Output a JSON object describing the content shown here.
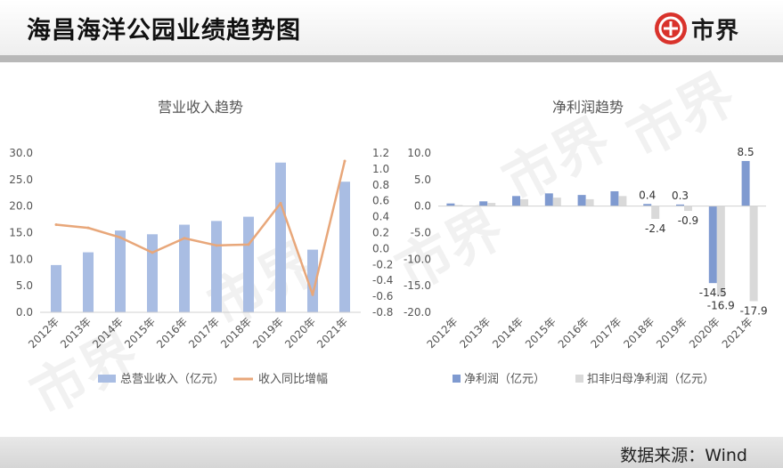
{
  "header": {
    "title": "海昌海洋公园业绩趋势图",
    "brand_name": "市界"
  },
  "footer": {
    "source": "数据来源：Wind"
  },
  "watermark_text": "市界",
  "colors": {
    "bar_blue": "#a9bde3",
    "bar_blue_dark": "#7f9ad0",
    "bar_gray": "#d9d9d9",
    "line_orange": "#e8a77a",
    "brand_red": "#d9322b"
  },
  "chart_data": [
    {
      "type": "bar",
      "title": "营业收入趋势",
      "categories": [
        "2012年",
        "2013年",
        "2014年",
        "2015年",
        "2016年",
        "2017年",
        "2018年",
        "2019年",
        "2020年",
        "2021年"
      ],
      "series": [
        {
          "name": "总营业收入（亿元）",
          "type": "bar",
          "axis": "left",
          "values": [
            8.9,
            11.3,
            15.4,
            14.7,
            16.5,
            17.2,
            18.0,
            28.2,
            11.8,
            24.6
          ]
        },
        {
          "name": "收入同比增幅",
          "type": "line",
          "axis": "right",
          "values": [
            0.3,
            0.26,
            0.14,
            -0.05,
            0.13,
            0.04,
            0.05,
            0.57,
            -0.58,
            1.1
          ]
        }
      ],
      "y_left": {
        "range": [
          0,
          30
        ],
        "ticks": [
          "0.0",
          "5.0",
          "10.0",
          "15.0",
          "20.0",
          "25.0",
          "30.0"
        ]
      },
      "y_right": {
        "range": [
          -0.8,
          1.2
        ],
        "ticks": [
          "-0.8",
          "-0.6",
          "-0.4",
          "-0.2",
          "0.0",
          "0.2",
          "0.4",
          "0.6",
          "0.8",
          "1.0",
          "1.2"
        ]
      },
      "legend": "bottom",
      "grid": false
    },
    {
      "type": "bar",
      "title": "净利润趋势",
      "categories": [
        "2012年",
        "2013年",
        "2014年",
        "2015年",
        "2016年",
        "2017年",
        "2018年",
        "2019年",
        "2020年",
        "2021年"
      ],
      "series": [
        {
          "name": "净利润（亿元）",
          "values": [
            0.5,
            0.9,
            1.9,
            2.4,
            2.1,
            2.8,
            0.4,
            0.3,
            -14.5,
            8.5
          ]
        },
        {
          "name": "扣非归母净利润（亿元）",
          "values": [
            0.2,
            0.6,
            1.3,
            1.6,
            1.3,
            1.9,
            -2.4,
            -0.9,
            -16.9,
            -17.9
          ]
        }
      ],
      "data_labels": {
        "series0": [
          null,
          null,
          null,
          null,
          null,
          null,
          "0.4",
          "0.3",
          "-14.5",
          "8.5"
        ],
        "series1": [
          null,
          null,
          null,
          null,
          null,
          null,
          "-2.4",
          "-0.9",
          "-16.9",
          "-17.9"
        ]
      },
      "y": {
        "range": [
          -20,
          10
        ],
        "ticks": [
          "-20.0",
          "-15.0",
          "-10.0",
          "-5.0",
          "0.0",
          "5.0",
          "10.0"
        ]
      },
      "legend": "bottom",
      "grid": false
    }
  ]
}
